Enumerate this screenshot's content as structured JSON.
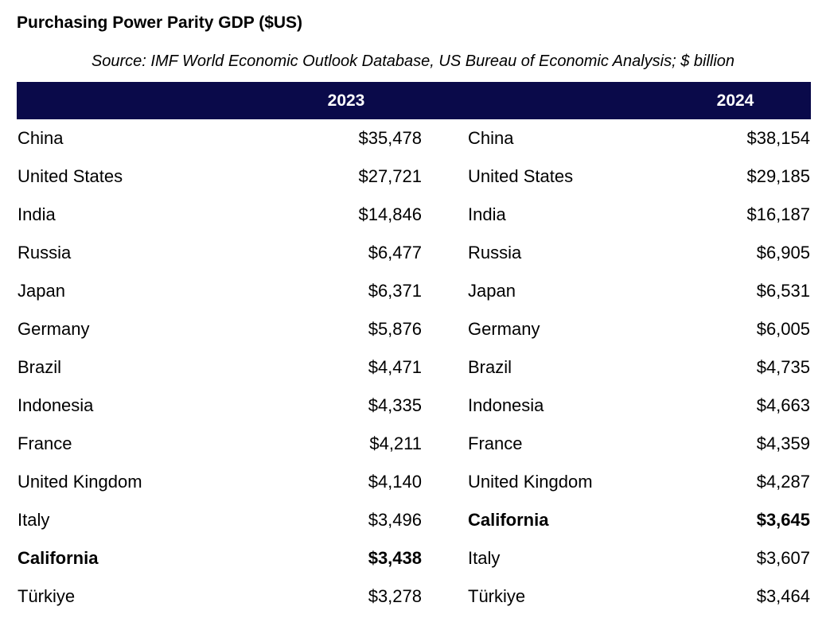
{
  "chart_data": {
    "type": "table",
    "title": "Purchasing Power Parity GDP ($US)",
    "source": "Source: IMF World Economic Outlook Database, US Bureau of Economic Analysis; $ billion",
    "columns": [
      "2023",
      "2024"
    ],
    "highlight": "California",
    "header_color": "#0a0a4a",
    "tables": [
      {
        "year": "2023",
        "rows": [
          {
            "name": "China",
            "value": "$35,478"
          },
          {
            "name": "United States",
            "value": "$27,721"
          },
          {
            "name": "India",
            "value": "$14,846"
          },
          {
            "name": "Russia",
            "value": "$6,477"
          },
          {
            "name": "Japan",
            "value": "$6,371"
          },
          {
            "name": "Germany",
            "value": "$5,876"
          },
          {
            "name": "Brazil",
            "value": "$4,471"
          },
          {
            "name": "Indonesia",
            "value": "$4,335"
          },
          {
            "name": "France",
            "value": "$4,211"
          },
          {
            "name": "United Kingdom",
            "value": "$4,140"
          },
          {
            "name": "Italy",
            "value": "$3,496"
          },
          {
            "name": "California",
            "value": "$3,438"
          },
          {
            "name": "Türkiye",
            "value": "$3,278"
          }
        ]
      },
      {
        "year": "2024",
        "rows": [
          {
            "name": "China",
            "value": "$38,154"
          },
          {
            "name": "United States",
            "value": "$29,185"
          },
          {
            "name": "India",
            "value": "$16,187"
          },
          {
            "name": "Russia",
            "value": "$6,905"
          },
          {
            "name": "Japan",
            "value": "$6,531"
          },
          {
            "name": "Germany",
            "value": "$6,005"
          },
          {
            "name": "Brazil",
            "value": "$4,735"
          },
          {
            "name": "Indonesia",
            "value": "$4,663"
          },
          {
            "name": "France",
            "value": "$4,359"
          },
          {
            "name": "United Kingdom",
            "value": "$4,287"
          },
          {
            "name": "California",
            "value": "$3,645"
          },
          {
            "name": "Italy",
            "value": "$3,607"
          },
          {
            "name": "Türkiye",
            "value": "$3,464"
          }
        ]
      }
    ]
  }
}
